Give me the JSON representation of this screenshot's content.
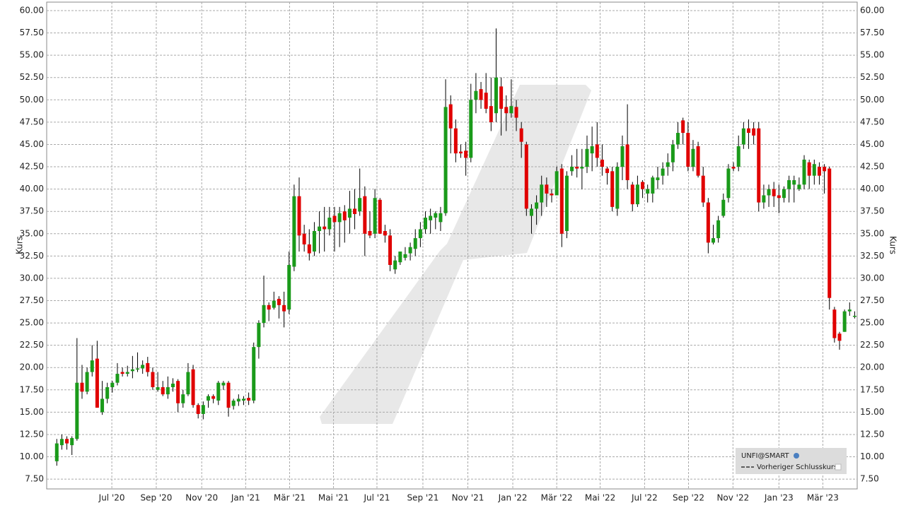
{
  "chart_data": {
    "type": "candlestick",
    "ylabel": "Kurs",
    "y2label": "Kurs",
    "legend": {
      "title": "UNFI@SMART",
      "entry": "Vorheriger Schlusskurs",
      "position": "lower right"
    },
    "up_color": "#1a9a1a",
    "down_color": "#e00000",
    "wick_color": "#000000",
    "grid": true,
    "xlim": [
      -2,
      158.5
    ],
    "xticks": [
      {
        "value": 10.9,
        "label": "Jul '20"
      },
      {
        "value": 19.7,
        "label": "Sep '20"
      },
      {
        "value": 28.7,
        "label": "Nov '20"
      },
      {
        "value": 37.4,
        "label": "Jan '21"
      },
      {
        "value": 46.1,
        "label": "Mär '21"
      },
      {
        "value": 54.8,
        "label": "Mai '21"
      },
      {
        "value": 63.4,
        "label": "Jul '21"
      },
      {
        "value": 72.5,
        "label": "Sep '21"
      },
      {
        "value": 81.4,
        "label": "Nov '21"
      },
      {
        "value": 90.3,
        "label": "Jan '22"
      },
      {
        "value": 99.0,
        "label": "Mär '22"
      },
      {
        "value": 107.6,
        "label": "Mai '22"
      },
      {
        "value": 116.4,
        "label": "Jul '22"
      },
      {
        "value": 125.1,
        "label": "Sep '22"
      },
      {
        "value": 133.9,
        "label": "Nov '22"
      },
      {
        "value": 143.0,
        "label": "Jan '23"
      },
      {
        "value": 151.7,
        "label": "Mär '23"
      }
    ],
    "ylim": [
      6.4,
      60.95
    ],
    "yticks": [
      {
        "value": 7.5,
        "label": "7.50"
      },
      {
        "value": 10,
        "label": "10.00"
      },
      {
        "value": 12.5,
        "label": "12.50"
      },
      {
        "value": 15,
        "label": "15.00"
      },
      {
        "value": 17.5,
        "label": "17.50"
      },
      {
        "value": 20,
        "label": "20.00"
      },
      {
        "value": 22.5,
        "label": "22.50"
      },
      {
        "value": 25,
        "label": "25.00"
      },
      {
        "value": 27.5,
        "label": "27.50"
      },
      {
        "value": 30,
        "label": "30.00"
      },
      {
        "value": 32.5,
        "label": "32.50"
      },
      {
        "value": 35,
        "label": "35.00"
      },
      {
        "value": 37.5,
        "label": "37.50"
      },
      {
        "value": 40,
        "label": "40.00"
      },
      {
        "value": 42.5,
        "label": "42.50"
      },
      {
        "value": 45,
        "label": "45.00"
      },
      {
        "value": 47.5,
        "label": "47.50"
      },
      {
        "value": 50,
        "label": "50.00"
      },
      {
        "value": 52.5,
        "label": "52.50"
      },
      {
        "value": 55,
        "label": "55.00"
      },
      {
        "value": 57.5,
        "label": "57.50"
      },
      {
        "value": 60,
        "label": "60.00"
      }
    ],
    "open": [
      9.5,
      11.3,
      12,
      11.3,
      12,
      18.3,
      17.3,
      19.5,
      21,
      15,
      16.5,
      17.8,
      18.3,
      19.5,
      19.3,
      19.6,
      19.8,
      19.9,
      20.5,
      19.5,
      17.5,
      17.8,
      17,
      17.8,
      18.5,
      16,
      17,
      19.8,
      15.8,
      14.8,
      16.3,
      16.8,
      16.3,
      18,
      18.3,
      15.7,
      16.2,
      16.3,
      16.6,
      16.3,
      22.3,
      25,
      27,
      26.7,
      27.7,
      27,
      26.5,
      31.3,
      39.2,
      35,
      33.8,
      33,
      35.3,
      35.8,
      35.5,
      37,
      36.3,
      37.5,
      36.8,
      37.8,
      37.5,
      39.2,
      35.3,
      35,
      38.8,
      35.3,
      34.8,
      31,
      31.8,
      32.3,
      32.8,
      33.3,
      34.5,
      35.5,
      36.5,
      36.8,
      36.3,
      37.3,
      49.5,
      46.8,
      44.2,
      44.3,
      43.5,
      50,
      51.2,
      50.8,
      49.3,
      48.5,
      51.5,
      49.2,
      48.5,
      49.2,
      46.8,
      45,
      37,
      37.8,
      38.5,
      40.5,
      39.5,
      39.3,
      42.3,
      35.3,
      42,
      42.5,
      42.3,
      42.5,
      44,
      45,
      43.3,
      42.3,
      42,
      37.8,
      42.5,
      45,
      40.5,
      38.3,
      40.8,
      39.5,
      39.5,
      41,
      41.5,
      42.5,
      43,
      45,
      47.7,
      46.3,
      42.5,
      44.8,
      41.5,
      38.5,
      34,
      34.5,
      37,
      39,
      42.5,
      42.5,
      45,
      46.8,
      46.8,
      46.8,
      38.5,
      39.3,
      40,
      39.3,
      39,
      40,
      40.5,
      40,
      40.5,
      43,
      41.5,
      42.5,
      42.5,
      42.3,
      26.5,
      23.8,
      24,
      26.3,
      25.8
    ],
    "high": [
      12,
      12.5,
      12.3,
      12.3,
      23.3,
      20.3,
      20,
      22.5,
      23,
      18.5,
      18.3,
      18.5,
      20.5,
      20,
      20.2,
      21.3,
      21.7,
      20.8,
      21.2,
      20,
      19.5,
      18.5,
      19,
      18.8,
      18.7,
      17.5,
      20.5,
      20.3,
      16,
      16.2,
      17,
      17,
      18.5,
      18.5,
      18.5,
      16.5,
      17,
      16.8,
      17.2,
      22.8,
      25.3,
      30.3,
      27.3,
      28.5,
      28,
      28.5,
      33,
      40.5,
      41.3,
      36,
      35.5,
      36.3,
      37.5,
      38,
      38,
      38,
      38,
      38.2,
      39.8,
      40,
      42.3,
      40.3,
      37.5,
      40,
      39,
      36,
      35.5,
      32.5,
      33,
      33.5,
      34,
      35.5,
      36.3,
      37.5,
      37.8,
      37.5,
      38,
      52.3,
      50.5,
      47.8,
      45,
      45.3,
      51.8,
      53,
      52,
      53,
      52.5,
      58,
      52.5,
      50.5,
      52.3,
      50,
      47.5,
      45.3,
      38.3,
      39.3,
      41.5,
      41.3,
      40,
      42.5,
      42.8,
      42,
      43.8,
      44.5,
      44.5,
      46,
      47,
      47.5,
      45,
      42.5,
      42.5,
      43,
      46,
      49.5,
      40.8,
      41.5,
      41,
      40.5,
      41.5,
      42.5,
      43,
      44,
      45.5,
      47.5,
      48,
      47.5,
      45.5,
      45.3,
      42.5,
      39,
      36,
      37,
      39.5,
      42.8,
      43,
      46,
      47.5,
      47.8,
      47.5,
      47.5,
      40.5,
      40.5,
      40.8,
      40.5,
      40.3,
      41.5,
      41.5,
      41.3,
      43.8,
      43.3,
      43.3,
      43,
      42.8,
      42.5,
      26.8,
      24,
      26.5,
      27.3,
      26.3
    ],
    "low": [
      9,
      10.8,
      10.8,
      10.2,
      11.8,
      16.5,
      17,
      19,
      15.5,
      14.7,
      16,
      17.2,
      18,
      19,
      19,
      18.8,
      19.5,
      19.3,
      19,
      17.5,
      17.3,
      16.8,
      16.5,
      17.3,
      15,
      15.5,
      16.8,
      15.5,
      14.3,
      14.2,
      15.5,
      16,
      15.8,
      17.5,
      14.5,
      15.3,
      15.7,
      15.8,
      15.8,
      16,
      21,
      24.5,
      25.2,
      26.5,
      25.5,
      24.5,
      26,
      30.8,
      33,
      33,
      32,
      32.5,
      32.8,
      33,
      34.8,
      33,
      33.5,
      34,
      35,
      35.5,
      37,
      32.5,
      34.5,
      34.5,
      35,
      34,
      30.8,
      30.5,
      31.5,
      32,
      32,
      32.5,
      33.5,
      35,
      35,
      35.5,
      35.3,
      37,
      44,
      43,
      43.5,
      41.5,
      43,
      48.5,
      49,
      48.5,
      46.5,
      47.5,
      46,
      46.5,
      48,
      46.5,
      43.5,
      37,
      35,
      36,
      37,
      38,
      38.5,
      39.5,
      33.5,
      34.5,
      41.5,
      41.3,
      40,
      41.8,
      42,
      42.5,
      41.5,
      40.5,
      37.5,
      37,
      41,
      40,
      37.5,
      38,
      39,
      38.5,
      38.5,
      40,
      40.5,
      41.5,
      42,
      44.5,
      45,
      42,
      42,
      41.3,
      38,
      32.8,
      33.8,
      34,
      36.8,
      38.5,
      42,
      42,
      44.5,
      44.5,
      45,
      37.5,
      37.8,
      38,
      38,
      37.3,
      38.5,
      38.5,
      38.5,
      39.8,
      40,
      40,
      40.5,
      40.5,
      39.5,
      26.5,
      22.8,
      22,
      24,
      25.8,
      25.5
    ],
    "close": [
      11.5,
      12,
      11.5,
      12.1,
      18.3,
      17.3,
      19.5,
      20.8,
      15.5,
      16.5,
      17.8,
      18.3,
      19.3,
      19.3,
      19.5,
      19.8,
      19.9,
      20.3,
      19.5,
      17.8,
      17.8,
      17,
      17.8,
      18.2,
      16,
      17,
      19.5,
      15.8,
      14.8,
      15.8,
      16.8,
      16.5,
      18.3,
      18.3,
      15.5,
      16.3,
      16.5,
      16.5,
      16.3,
      22.3,
      25,
      27,
      26.5,
      27.5,
      27,
      26.3,
      31.5,
      39.2,
      34.8,
      33.8,
      32.8,
      35.3,
      35.8,
      35.5,
      36.8,
      36.3,
      37.3,
      36.5,
      37.8,
      37.2,
      39,
      35,
      34.8,
      39,
      35,
      34.8,
      31.5,
      32,
      33,
      32.7,
      33.5,
      34.5,
      35.5,
      36.8,
      37,
      37.3,
      37.3,
      49.2,
      46.8,
      44,
      44,
      43.5,
      50,
      51,
      50,
      49,
      47.5,
      52.5,
      49,
      48.5,
      49.3,
      48,
      45.3,
      37.8,
      37.8,
      38.5,
      40.5,
      39.5,
      39.3,
      42,
      35,
      41.5,
      42.5,
      42.3,
      42.5,
      44.5,
      44.8,
      43.5,
      42.5,
      41.8,
      38,
      42.5,
      44.8,
      41,
      38.3,
      40.5,
      40,
      40,
      41.3,
      41.3,
      42.3,
      43,
      45,
      46.3,
      46.3,
      42.5,
      44.5,
      41.5,
      38.5,
      34,
      34.5,
      36.5,
      38.8,
      42.3,
      42.3,
      44.8,
      46.8,
      46.3,
      46,
      38.5,
      39.3,
      40,
      39.2,
      39,
      40,
      41,
      41,
      40.5,
      43.3,
      41.5,
      42.8,
      41.5,
      42,
      27.8,
      23.3,
      23,
      26.3,
      26.5,
      25.8
    ]
  }
}
